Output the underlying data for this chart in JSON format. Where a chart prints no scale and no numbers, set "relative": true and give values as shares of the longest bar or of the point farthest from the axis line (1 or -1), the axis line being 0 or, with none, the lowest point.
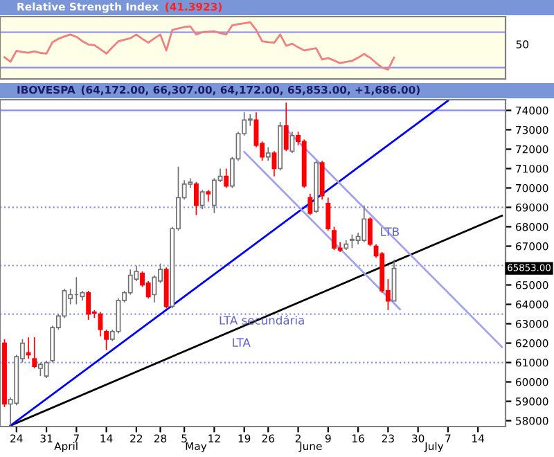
{
  "chart_data": [
    {
      "type": "line",
      "title": "Relative Strength Index",
      "subtitle": "(41.3923)",
      "relative": true,
      "grid": false,
      "legend": false,
      "categories": [
        null,
        null,
        null,
        null,
        null,
        null,
        null,
        null,
        null,
        null,
        null,
        null,
        null,
        null,
        null,
        null,
        null,
        null,
        null,
        null,
        null,
        null,
        null,
        null,
        null,
        null,
        null,
        null,
        null,
        null,
        null,
        null,
        null,
        null,
        null,
        null,
        null,
        null,
        null,
        null,
        null,
        null,
        null,
        null,
        null,
        null,
        null,
        null,
        null,
        null,
        null,
        null,
        null,
        null,
        null,
        null,
        null,
        null,
        null,
        null,
        null,
        null,
        null,
        null,
        null,
        null,
        null,
        null,
        null,
        null,
        null,
        null,
        null,
        null,
        null,
        null,
        null,
        null,
        null,
        null,
        null,
        null,
        null,
        null
      ],
      "ref_lines": [
        {
          "axis": "y",
          "value": 0.79,
          "color": "#8c8cf0",
          "line_style": "solid"
        },
        {
          "axis": "y",
          "value": 0.039,
          "color": "#8c8cf0",
          "line_style": "solid"
        }
      ],
      "annotations": [
        "50"
      ],
      "series": [
        {
          "color": "#f08080",
          "values": [
            0.259,
            0.163,
            0.396,
            0.37,
            0.356,
            0.386,
            0.35,
            0.336,
            0.576,
            0.65,
            0.7,
            0.741,
            0.692,
            0.6,
            0.529,
            0.518,
            0.43,
            0.336,
            0.47,
            0.597,
            0.63,
            0.662,
            0.741,
            0.65,
            0.568,
            0.66,
            0.741,
            0.403,
            0.837,
            0.87,
            0.9,
            0.914,
            0.741,
            0.79,
            0.8,
            0.809,
            0.77,
            0.741,
            0.934,
            0.96,
            0.98,
            1,
            0.837,
            0.597,
            0.58,
            0.568,
            0.741,
            0.501,
            0.546,
            0.47,
            0.403,
            0.43,
            0.452,
            0.212,
            0.242,
            0.19,
            0.135,
            0.16,
            0.182,
            0.25,
            0.328,
            0.25,
            0.14,
            0.039,
            0,
            0.253,
            null,
            null,
            null,
            null,
            null,
            null,
            null,
            null,
            null,
            null,
            null,
            null,
            null,
            null,
            null,
            null,
            null,
            null
          ]
        }
      ]
    },
    {
      "type": "candlestick",
      "title": "IBOVESPA",
      "subtitle": "(64,172.00, 66,307.00, 64,172.00, 65,853.00, +1,686.00)",
      "grid": false,
      "legend": false,
      "categories": [
        null,
        null,
        "24",
        null,
        null,
        null,
        null,
        "31",
        null,
        null,
        null,
        null,
        "7",
        null,
        null,
        null,
        null,
        "14",
        null,
        null,
        null,
        null,
        "22",
        null,
        null,
        null,
        "28",
        null,
        null,
        null,
        "5",
        null,
        null,
        null,
        null,
        "12",
        null,
        null,
        null,
        null,
        "19",
        null,
        null,
        null,
        "26",
        null,
        null,
        null,
        null,
        "2",
        null,
        null,
        null,
        null,
        "9",
        null,
        null,
        null,
        null,
        "16",
        null,
        null,
        null,
        null,
        "23",
        null,
        null,
        null,
        null,
        "30",
        null,
        null,
        null,
        null,
        "7",
        null,
        null,
        null,
        null,
        "14",
        null,
        null,
        null,
        null
      ],
      "ylim": [
        57700,
        74550
      ],
      "yticks": [
        58000,
        59000,
        60000,
        61000,
        62000,
        63000,
        64000,
        65000,
        {
          "value": 66000,
          "label": null
        },
        67000,
        68000,
        69000,
        70000,
        71000,
        72000,
        73000,
        74000
      ],
      "ohlc": [
        [
          62000,
          62200,
          58700,
          58860
        ],
        [
          58860,
          59200,
          57750,
          59100
        ],
        [
          58900,
          61400,
          58800,
          61300
        ],
        [
          61200,
          62200,
          61000,
          62000
        ],
        [
          61500,
          62300,
          61200,
          61400
        ],
        [
          61200,
          62300,
          60700,
          60800
        ],
        [
          60700,
          61000,
          60300,
          60900
        ],
        [
          60300,
          61100,
          60200,
          61000
        ],
        [
          61100,
          62900,
          61000,
          62800
        ],
        [
          62800,
          63500,
          62700,
          63400
        ],
        [
          63400,
          64800,
          63300,
          64700
        ],
        [
          64300,
          64800,
          64000,
          64500
        ],
        [
          64500,
          65400,
          64000,
          64500
        ],
        [
          64400,
          64700,
          64200,
          64600
        ],
        [
          64600,
          64700,
          63200,
          63500
        ],
        [
          63600,
          63700,
          63300,
          63550
        ],
        [
          63500,
          63600,
          62350,
          62700
        ],
        [
          62600,
          62700,
          61650,
          62200
        ],
        [
          62200,
          62700,
          62100,
          62600
        ],
        [
          62600,
          64300,
          62500,
          64200
        ],
        [
          64200,
          64700,
          64100,
          64600
        ],
        [
          64600,
          65800,
          64500,
          65500
        ],
        [
          65300,
          66000,
          65200,
          65700
        ],
        [
          65600,
          65700,
          64900,
          65000
        ],
        [
          65100,
          65200,
          64300,
          64400
        ],
        [
          64500,
          65500,
          64100,
          65400
        ],
        [
          65200,
          66100,
          65100,
          65800
        ],
        [
          65800,
          65900,
          63800,
          63900
        ],
        [
          63900,
          68000,
          63800,
          67900
        ],
        [
          67900,
          71100,
          67800,
          69500
        ],
        [
          69500,
          70400,
          69400,
          70200
        ],
        [
          70200,
          70500,
          70000,
          70300
        ],
        [
          70200,
          70300,
          68600,
          69100
        ],
        [
          69100,
          69900,
          68900,
          69800
        ],
        [
          69800,
          69900,
          69300,
          69700
        ],
        [
          69100,
          70500,
          68700,
          70400
        ],
        [
          70400,
          71000,
          70300,
          70600
        ],
        [
          70600,
          71000,
          70000,
          70100
        ],
        [
          70100,
          71600,
          70000,
          71500
        ],
        [
          71500,
          72900,
          71400,
          72800
        ],
        [
          72800,
          73900,
          72700,
          73500
        ],
        [
          73500,
          73800,
          73200,
          73550
        ],
        [
          73500,
          73900,
          72100,
          72200
        ],
        [
          72300,
          72400,
          71400,
          71600
        ],
        [
          71600,
          72100,
          71400,
          71800
        ],
        [
          71800,
          71900,
          70600,
          71000
        ],
        [
          71000,
          73400,
          70900,
          73200
        ],
        [
          73200,
          74400,
          71900,
          72000
        ],
        [
          71900,
          72900,
          71800,
          72700
        ],
        [
          72700,
          72900,
          72200,
          72400
        ],
        [
          72400,
          72500,
          70000,
          70100
        ],
        [
          69500,
          69700,
          68600,
          68700
        ],
        [
          68800,
          71400,
          68700,
          71300
        ],
        [
          71300,
          71400,
          69400,
          69600
        ],
        [
          69200,
          69500,
          67800,
          67900
        ],
        [
          67800,
          68000,
          66800,
          66900
        ],
        [
          66900,
          67200,
          66700,
          66800
        ],
        [
          66900,
          67300,
          66800,
          67100
        ],
        [
          67300,
          67600,
          66900,
          67350
        ],
        [
          67300,
          67700,
          67100,
          67500
        ],
        [
          67300,
          69100,
          67200,
          68400
        ],
        [
          68400,
          68500,
          67000,
          67100
        ],
        [
          67000,
          67100,
          66400,
          66500
        ],
        [
          66600,
          66700,
          64600,
          64700
        ],
        [
          64700,
          65300,
          63700,
          64172
        ],
        [
          64172,
          66307,
          64172,
          65853
        ],
        null,
        null,
        null,
        null,
        null,
        null,
        null,
        null,
        null,
        null,
        null,
        null,
        null,
        null,
        null,
        null,
        null,
        null
      ],
      "colors": [
        "#ff0000",
        "#ffffff",
        "#ffffff",
        "#ffffff",
        "#ff0000",
        "#ff0000",
        "#ffffff",
        "#ffffff",
        "#ffffff",
        "#ffffff",
        "#ffffff",
        "#ffffff",
        "#707070",
        "#ffffff",
        "#ff0000",
        "#ff0000",
        "#ff0000",
        "#ff0000",
        "#ffffff",
        "#ffffff",
        "#ffffff",
        "#ffffff",
        "#ffffff",
        "#ff0000",
        "#ff0000",
        "#ffffff",
        "#ffffff",
        "#ff0000",
        "#ffffff",
        "#ffffff",
        "#ffffff",
        "#ffffff",
        "#ff0000",
        "#ffffff",
        "#ff0000",
        "#ffffff",
        "#ffffff",
        "#ff0000",
        "#ffffff",
        "#ffffff",
        "#ffffff",
        "#ffffff",
        "#ff0000",
        "#ff0000",
        "#ffffff",
        "#ff0000",
        "#ffffff",
        "#ff0000",
        "#ffffff",
        "#ff0000",
        "#ff0000",
        "#ff0000",
        "#ffffff",
        "#ff0000",
        "#ff0000",
        "#ff0000",
        "#ff0000",
        "#ffffff",
        "#ffffff",
        "#ffffff",
        "#ffffff",
        "#ff0000",
        "#ff0000",
        "#ff0000",
        "#ff0000",
        "#ffffff",
        null,
        null,
        null,
        null,
        null,
        null,
        null,
        null,
        null,
        null,
        null,
        null,
        null,
        null,
        null,
        null,
        null,
        null
      ],
      "series": [
        {
          "type": "line",
          "color": "#000000",
          "values": [
            null,
            57750,
            null,
            null,
            null,
            null,
            null,
            null,
            null,
            null,
            null,
            null,
            null,
            null,
            null,
            null,
            null,
            null,
            null,
            null,
            null,
            null,
            null,
            null,
            null,
            null,
            null,
            null,
            null,
            null,
            null,
            null,
            null,
            null,
            null,
            null,
            null,
            null,
            null,
            null,
            null,
            null,
            null,
            null,
            null,
            null,
            null,
            null,
            null,
            null,
            null,
            null,
            null,
            null,
            null,
            null,
            null,
            null,
            null,
            null,
            null,
            null,
            null,
            null,
            null,
            null,
            null,
            null,
            null,
            null,
            null,
            null,
            null,
            null,
            null,
            null,
            null,
            null,
            null,
            null,
            null,
            null,
            null,
            68570
          ]
        },
        {
          "type": "line",
          "color": "#0000ff",
          "values": [
            null,
            57750,
            null,
            null,
            null,
            null,
            null,
            null,
            null,
            null,
            null,
            null,
            null,
            null,
            null,
            null,
            null,
            null,
            null,
            null,
            null,
            null,
            null,
            null,
            null,
            null,
            null,
            null,
            null,
            null,
            null,
            null,
            null,
            null,
            null,
            null,
            null,
            null,
            null,
            null,
            null,
            null,
            null,
            null,
            null,
            null,
            null,
            null,
            null,
            null,
            null,
            null,
            null,
            null,
            null,
            null,
            null,
            null,
            null,
            null,
            null,
            null,
            null,
            null,
            null,
            null,
            null,
            null,
            null,
            null,
            null,
            null,
            null,
            null,
            74500,
            null,
            null,
            null,
            null,
            null,
            null,
            null,
            null,
            null
          ]
        },
        {
          "type": "line",
          "color": "#a0a0f0",
          "values": [
            null,
            null,
            null,
            null,
            null,
            null,
            null,
            null,
            null,
            null,
            null,
            null,
            null,
            null,
            null,
            null,
            null,
            null,
            null,
            null,
            null,
            null,
            null,
            null,
            null,
            null,
            null,
            null,
            null,
            null,
            null,
            null,
            null,
            null,
            null,
            null,
            null,
            null,
            null,
            null,
            null,
            null,
            null,
            null,
            null,
            null,
            null,
            73020,
            null,
            null,
            null,
            null,
            null,
            null,
            null,
            null,
            null,
            null,
            null,
            null,
            null,
            null,
            null,
            null,
            null,
            null,
            null,
            null,
            null,
            null,
            null,
            null,
            null,
            null,
            null,
            null,
            null,
            null,
            null,
            null,
            null,
            null,
            null,
            61800
          ]
        },
        {
          "type": "line",
          "color": "#a0a0f0",
          "values": [
            null,
            null,
            null,
            null,
            null,
            null,
            null,
            null,
            null,
            null,
            null,
            null,
            null,
            null,
            null,
            null,
            null,
            null,
            null,
            null,
            null,
            null,
            null,
            null,
            null,
            null,
            null,
            null,
            null,
            null,
            null,
            null,
            null,
            null,
            null,
            null,
            null,
            null,
            null,
            null,
            71860,
            null,
            null,
            null,
            null,
            null,
            null,
            null,
            null,
            null,
            null,
            null,
            null,
            null,
            null,
            null,
            null,
            null,
            null,
            null,
            null,
            null,
            null,
            null,
            null,
            null,
            63740,
            null,
            null,
            null,
            null,
            null,
            null,
            null,
            null,
            null,
            null,
            null,
            null,
            null,
            null,
            null,
            null,
            null
          ]
        }
      ],
      "ref_lines": [
        {
          "axis": "y",
          "value": 74000,
          "color": "#8c8cf0",
          "line_style": "solid"
        },
        {
          "axis": "y",
          "value": 69000,
          "color": "#8c8cf0",
          "line_style": "dotted"
        },
        {
          "axis": "y",
          "value": 66000,
          "color": "#8c8cf0",
          "line_style": "dotted"
        },
        {
          "axis": "y",
          "value": 63500,
          "color": "#8c8cf0",
          "line_style": "dotted"
        },
        {
          "axis": "y",
          "value": 61000,
          "color": "#8c8cf0",
          "line_style": "dotted"
        }
      ],
      "annotations": [
        "LTB",
        "LTA secundária",
        "LTA",
        "65853.00",
        "April",
        "May",
        "June",
        "July"
      ]
    }
  ]
}
